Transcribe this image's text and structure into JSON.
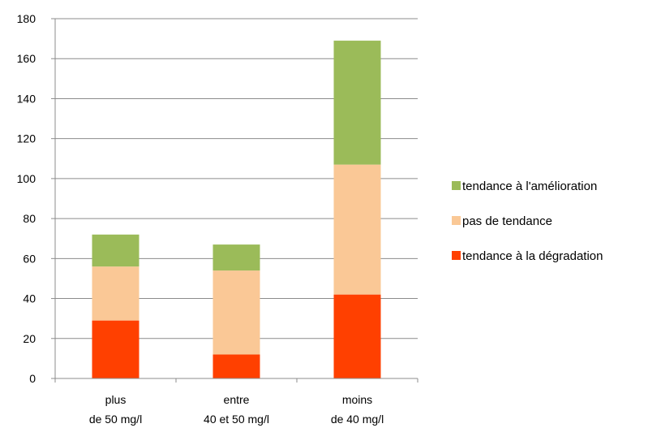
{
  "chart_data": {
    "type": "bar",
    "stacked": true,
    "categories": [
      [
        "plus",
        "de 50 mg/l"
      ],
      [
        "entre",
        "40 et 50 mg/l"
      ],
      [
        "moins",
        "de 40 mg/l"
      ]
    ],
    "series": [
      {
        "name": "tendance à la dégradation",
        "color": "#FF4000",
        "values": [
          29,
          12,
          42
        ]
      },
      {
        "name": "pas de tendance",
        "color": "#FAC896",
        "values": [
          27,
          42,
          65
        ]
      },
      {
        "name": "tendance à l'amélioration",
        "color": "#9BBB59",
        "values": [
          16,
          13,
          62
        ]
      }
    ],
    "legend_order": [
      2,
      1,
      0
    ],
    "legend_position": "right",
    "ylim": [
      0,
      180
    ],
    "yticks": [
      0,
      20,
      40,
      60,
      80,
      100,
      120,
      140,
      160,
      180
    ],
    "grid": true,
    "title": "",
    "xlabel": "",
    "ylabel": ""
  }
}
